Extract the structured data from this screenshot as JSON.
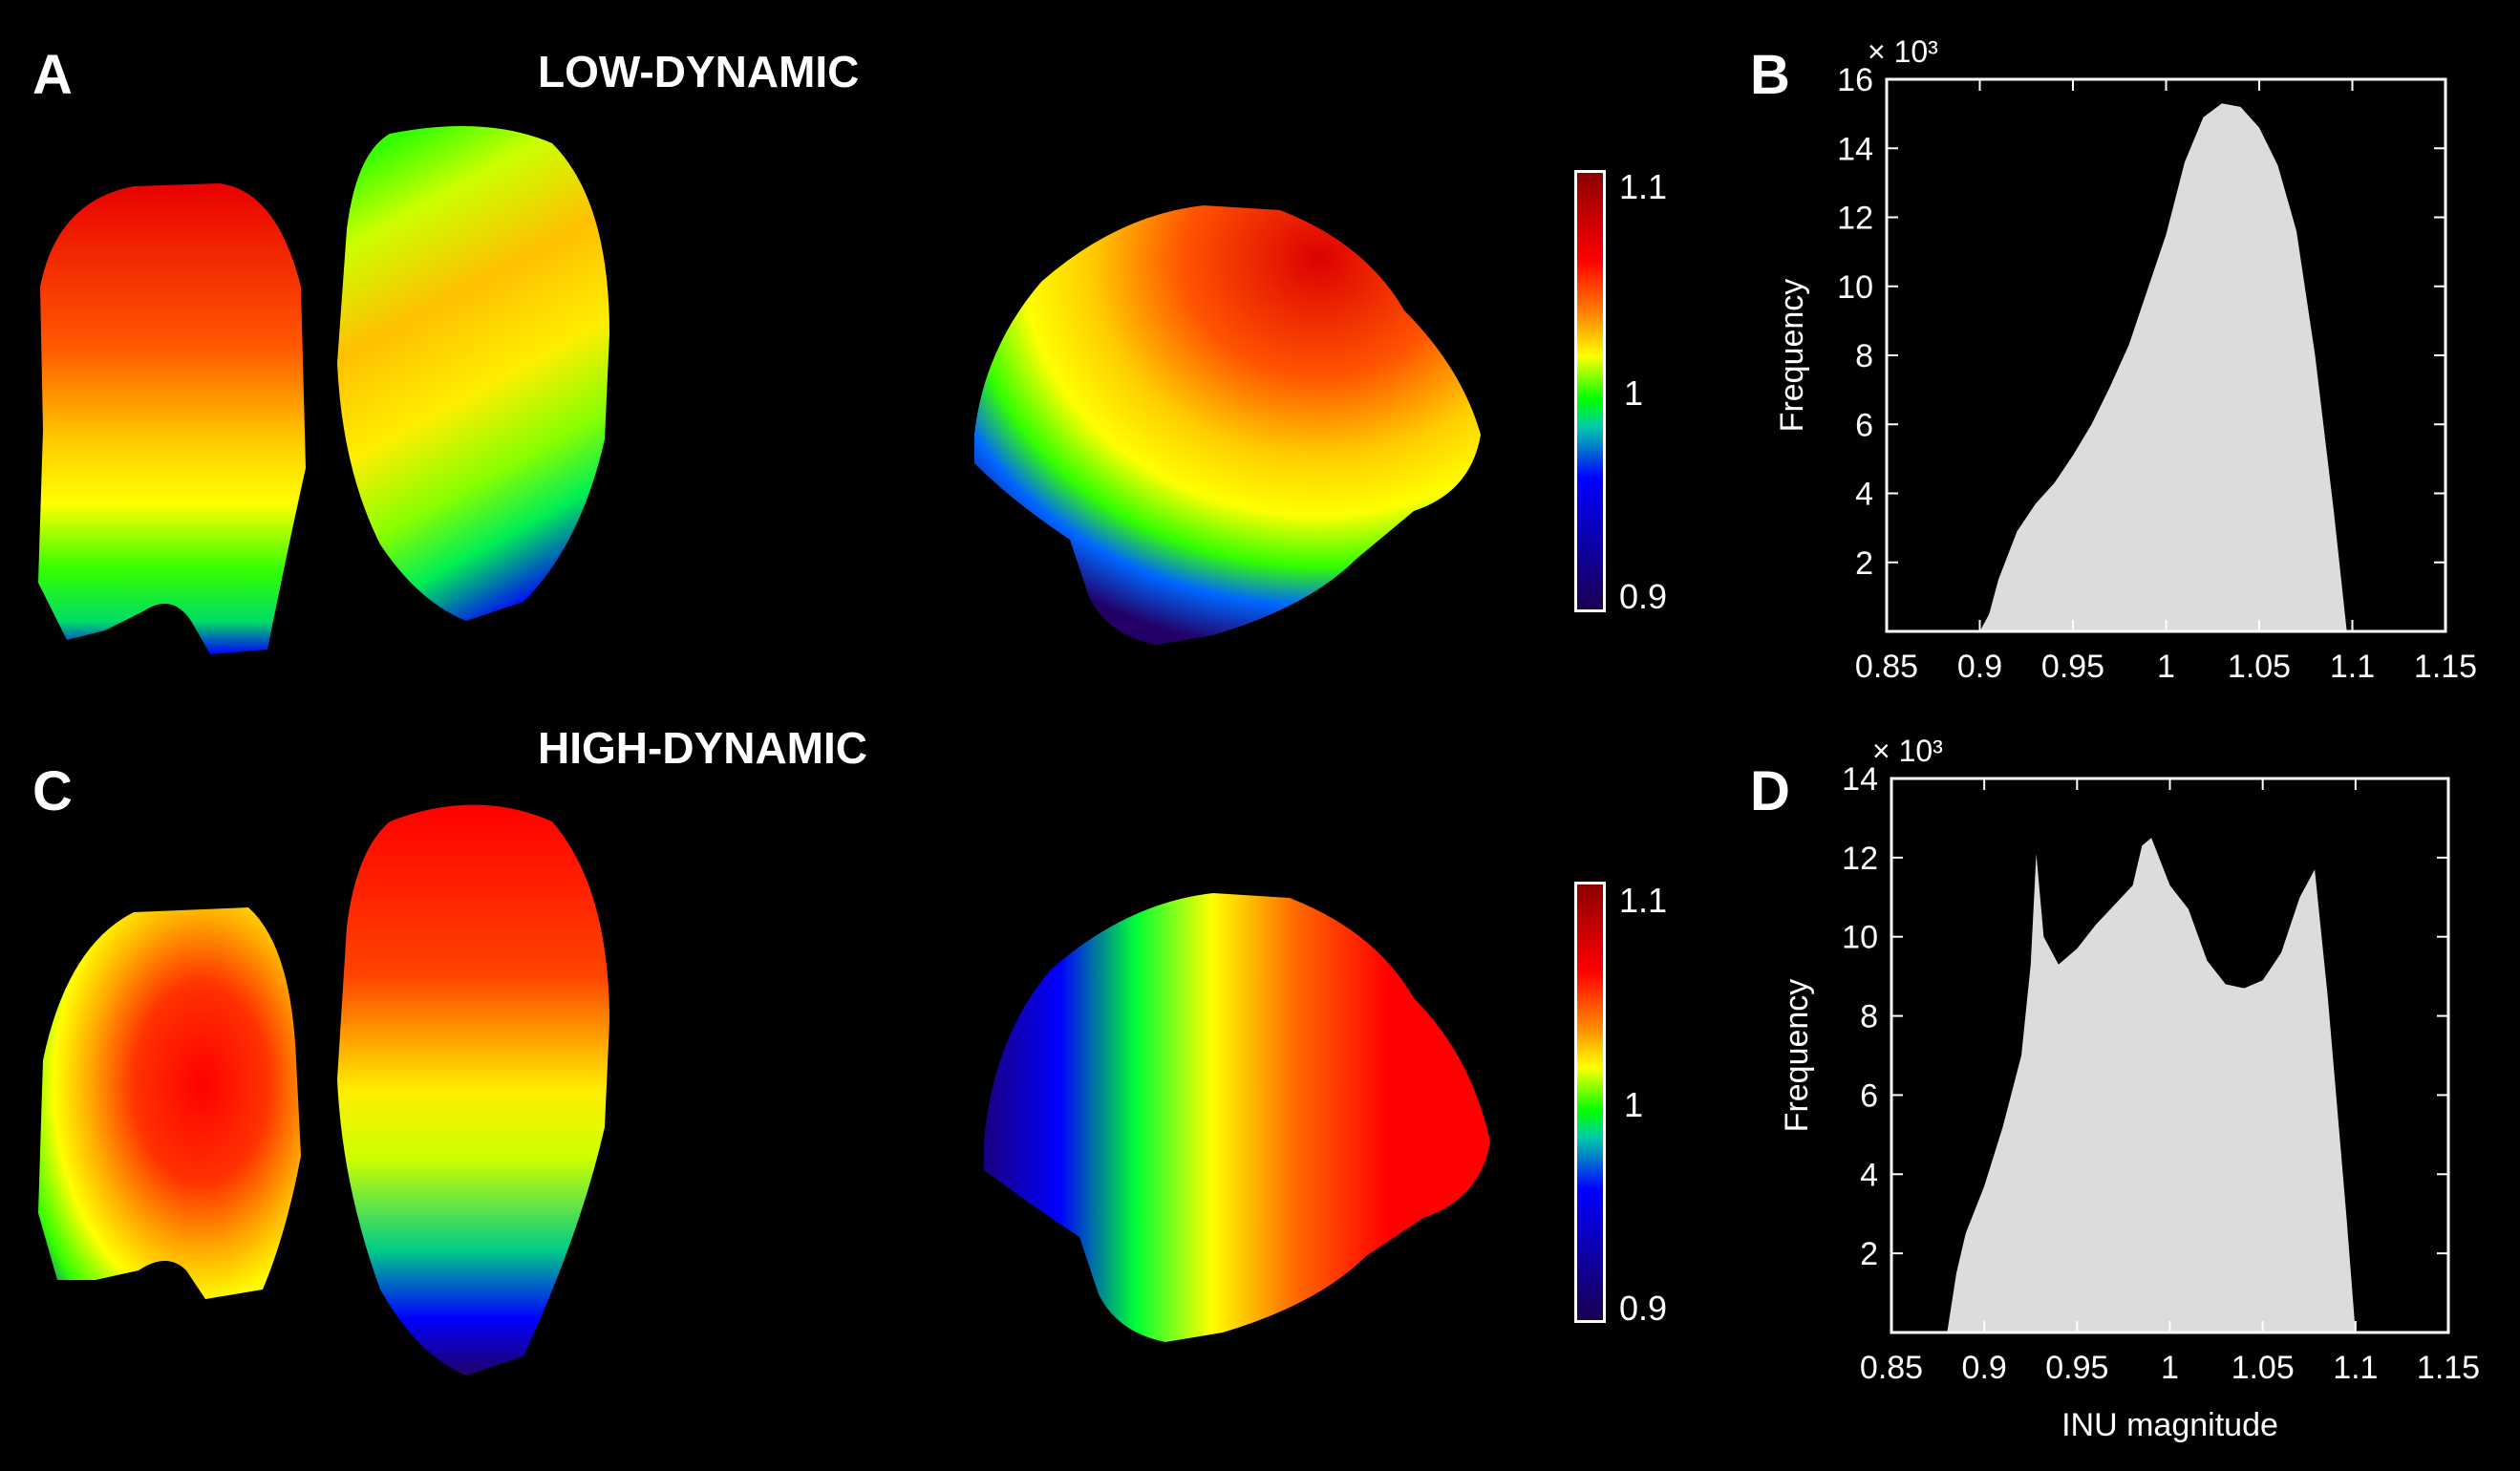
{
  "panels": {
    "a": {
      "letter": "A",
      "title": "LOW-DYNAMIC"
    },
    "b": {
      "letter": "B"
    },
    "c": {
      "letter": "C",
      "title": "HIGH-DYNAMIC"
    },
    "d": {
      "letter": "D"
    }
  },
  "colorbar": {
    "max_label": "1.1",
    "mid_label": "1",
    "min_label": "0.9"
  },
  "chart_data": [
    {
      "panel": "B",
      "type": "bar",
      "title": "",
      "xlabel": "",
      "ylabel": "Frequency",
      "y_multiplier": "× 10³",
      "xlim": [
        0.85,
        1.15
      ],
      "ylim": [
        0,
        16
      ],
      "xticks": [
        "0.85",
        "0.9",
        "0.95",
        "1",
        "1.05",
        "1.1",
        "1.15"
      ],
      "yticks": [
        "2",
        "4",
        "6",
        "8",
        "10",
        "12",
        "14",
        "16"
      ],
      "x": [
        0.9,
        0.905,
        0.91,
        0.92,
        0.93,
        0.94,
        0.95,
        0.96,
        0.97,
        0.98,
        0.99,
        1.0,
        1.01,
        1.02,
        1.03,
        1.04,
        1.05,
        1.06,
        1.07,
        1.08,
        1.09,
        1.097
      ],
      "values": [
        0,
        0.5,
        1.5,
        2.9,
        3.7,
        4.3,
        5.1,
        6.0,
        7.1,
        8.3,
        9.9,
        11.5,
        13.6,
        14.9,
        15.3,
        15.2,
        14.6,
        13.5,
        11.6,
        8.0,
        3.5,
        0
      ],
      "color": "#dcdcdc"
    },
    {
      "panel": "D",
      "type": "bar",
      "title": "",
      "xlabel": "INU magnitude",
      "ylabel": "Frequency",
      "y_multiplier": "× 10³",
      "xlim": [
        0.85,
        1.15
      ],
      "ylim": [
        0,
        14
      ],
      "xticks": [
        "0.85",
        "0.9",
        "0.95",
        "1",
        "1.05",
        "1.1",
        "1.15"
      ],
      "yticks": [
        "2",
        "4",
        "6",
        "8",
        "10",
        "12",
        "14"
      ],
      "x": [
        0.88,
        0.885,
        0.89,
        0.9,
        0.91,
        0.92,
        0.925,
        0.928,
        0.932,
        0.94,
        0.95,
        0.96,
        0.97,
        0.98,
        0.985,
        0.99,
        1.0,
        1.01,
        1.02,
        1.03,
        1.04,
        1.05,
        1.06,
        1.07,
        1.078,
        1.085,
        1.095,
        1.1
      ],
      "values": [
        0,
        1.5,
        2.5,
        3.7,
        5.2,
        7.0,
        9.3,
        12.1,
        10.0,
        9.3,
        9.7,
        10.3,
        10.8,
        11.3,
        12.3,
        12.5,
        11.3,
        10.7,
        9.4,
        8.8,
        8.7,
        8.9,
        9.6,
        11.0,
        11.7,
        8.5,
        3.0,
        0
      ],
      "color": "#dcdcdc"
    }
  ]
}
